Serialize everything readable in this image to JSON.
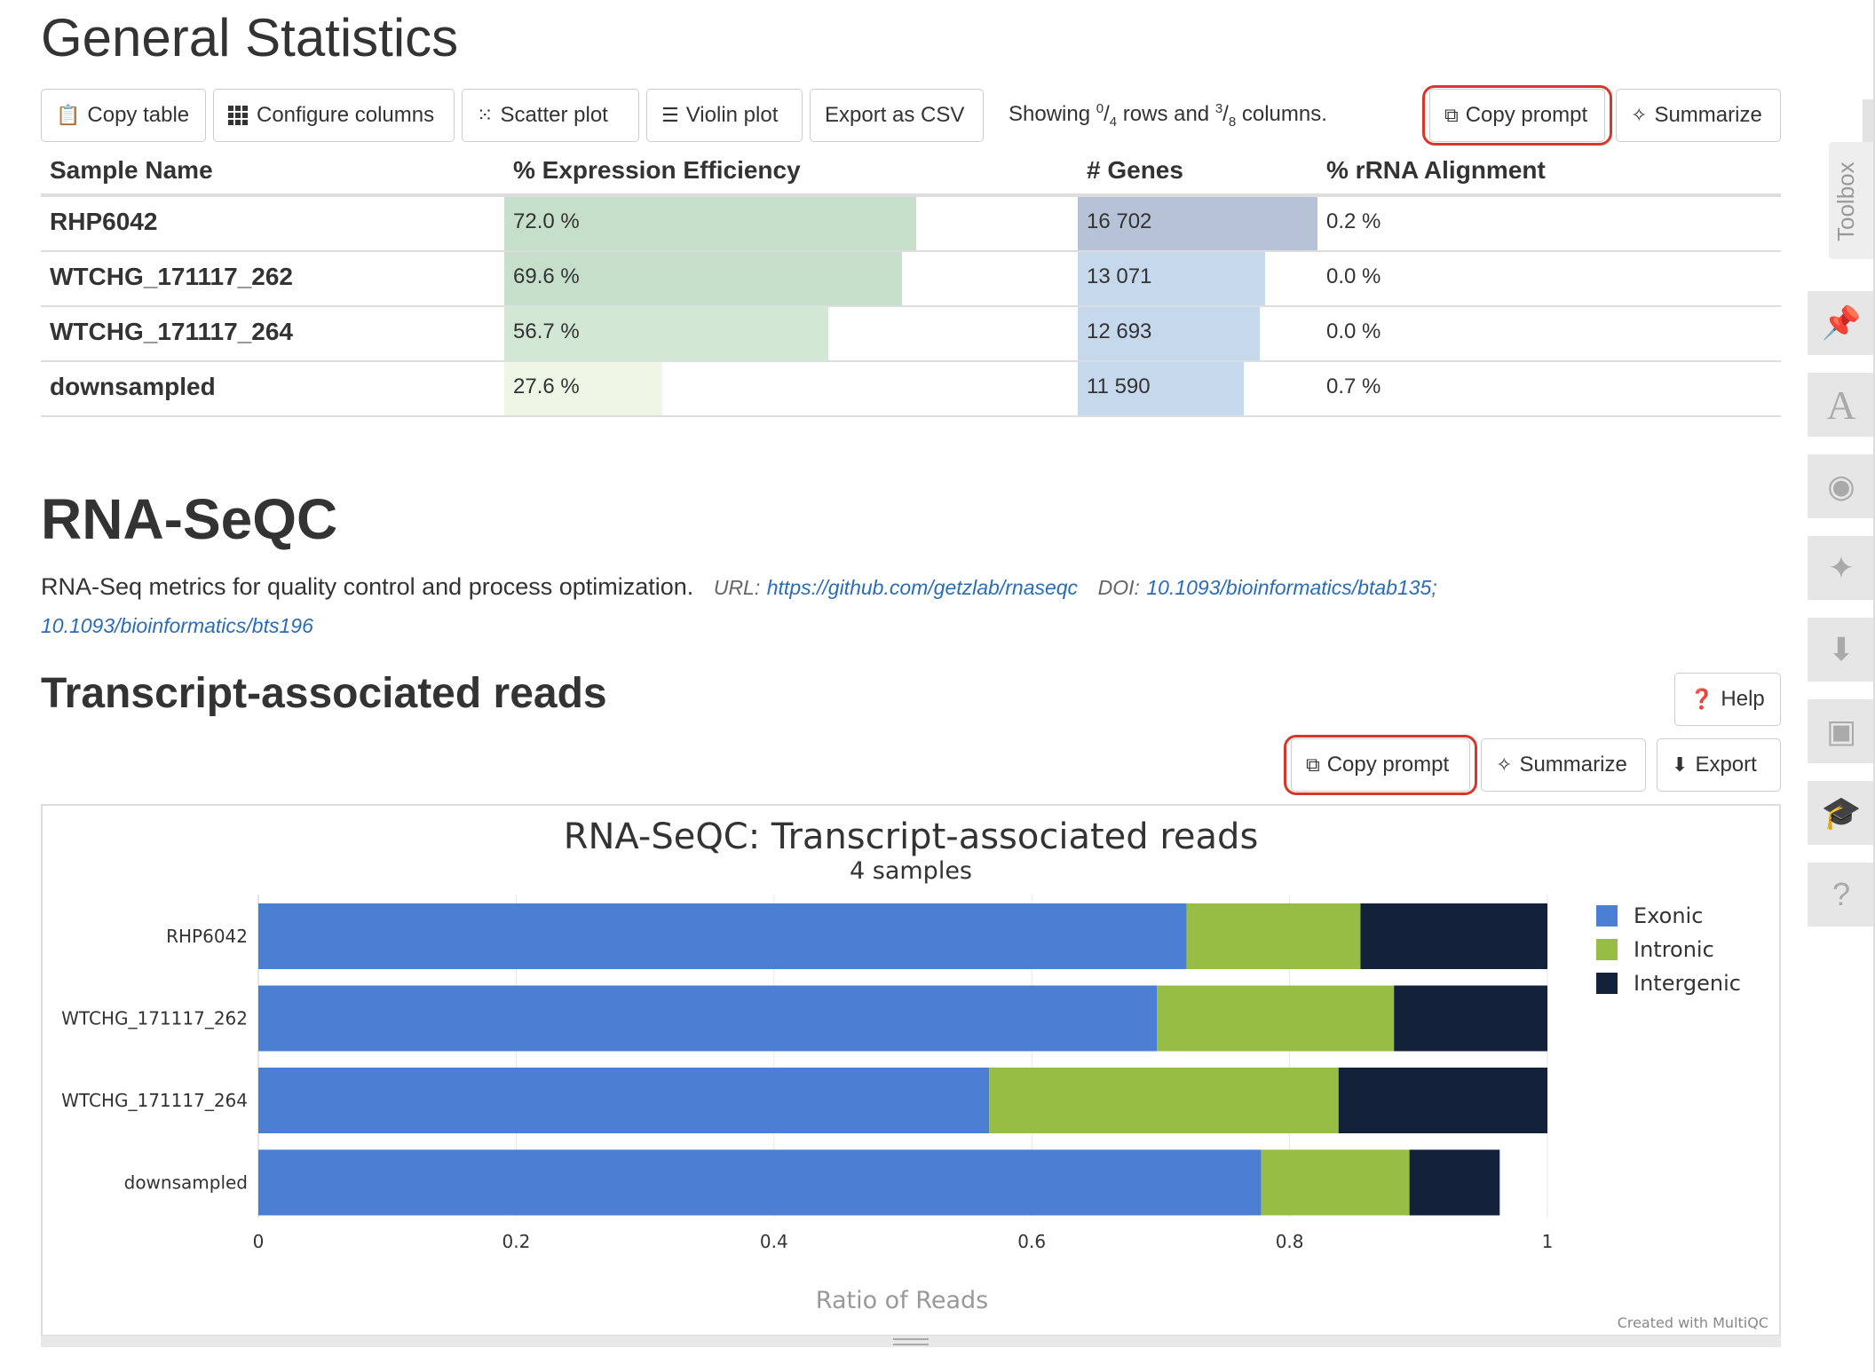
{
  "general_stats": {
    "title": "General Statistics",
    "toolbar": {
      "copy_table": "Copy table",
      "configure_columns": "Configure columns",
      "scatter_plot": "Scatter plot",
      "violin_plot": "Violin plot",
      "export_csv": "Export as CSV",
      "showing_prefix": "Showing",
      "rows_num": "0",
      "rows_den": "4",
      "rows_mid": "rows and",
      "cols_num": "3",
      "cols_den": "8",
      "cols_suffix": "columns.",
      "copy_prompt": "Copy prompt",
      "summarize": "Summarize"
    },
    "columns": [
      "Sample Name",
      "% Expression Efficiency",
      "# Genes",
      "% rRNA Alignment"
    ],
    "rows": [
      {
        "name": "RHP6042",
        "efficiency": "72.0 %",
        "efficiency_value": 72.0,
        "genes": "16 702",
        "genes_value": 16702,
        "rrna": "0.2 %"
      },
      {
        "name": "WTCHG_171117_262",
        "efficiency": "69.6 %",
        "efficiency_value": 69.6,
        "genes": "13 071",
        "genes_value": 13071,
        "rrna": "0.0 %"
      },
      {
        "name": "WTCHG_171117_264",
        "efficiency": "56.7 %",
        "efficiency_value": 56.7,
        "genes": "12 693",
        "genes_value": 12693,
        "rrna": "0.0 %"
      },
      {
        "name": "downsampled",
        "efficiency": "27.6 %",
        "efficiency_value": 27.6,
        "genes": "11 590",
        "genes_value": 11590,
        "rrna": "0.7 %"
      }
    ],
    "colors": {
      "efficiency_bars": [
        "#c6dfca",
        "#c6dfca",
        "#d2e8d4",
        "#eef7e6"
      ],
      "genes_bars": [
        "#b6c3d6",
        "#c6d8ec",
        "#c6d8ec",
        "#c6d8ec"
      ]
    }
  },
  "rnaseqc": {
    "title": "RNA-SeQC",
    "description": "RNA-Seq metrics for quality control and process optimization.",
    "url_label": "URL:",
    "url": "https://github.com/getzlab/rnaseqc",
    "doi_label": "DOI:",
    "doi1": "10.1093/bioinformatics/btab135;",
    "doi2": "10.1093/bioinformatics/bts196"
  },
  "transcript_section": {
    "title": "Transcript-associated reads",
    "help": "Help",
    "copy_prompt": "Copy prompt",
    "summarize": "Summarize",
    "export": "Export",
    "credit": "Created with MultiQC"
  },
  "toolbox": {
    "label": "Toolbox",
    "icons": [
      "pin-icon",
      "font-icon",
      "eye-slash-icon",
      "sparkle-icon",
      "download-icon",
      "save-icon",
      "graduation-cap-icon",
      "question-icon"
    ]
  },
  "chart_data": {
    "type": "bar",
    "orientation": "horizontal",
    "stacked": true,
    "title": "RNA-SeQC: Transcript-associated reads",
    "subtitle": "4 samples",
    "xlabel": "Ratio of Reads",
    "xlim": [
      0,
      1
    ],
    "xticks": [
      "0",
      "0.2",
      "0.4",
      "0.6",
      "0.8",
      "1"
    ],
    "categories": [
      "RHP6042",
      "WTCHG_171117_262",
      "WTCHG_171117_264",
      "downsampled"
    ],
    "series": [
      {
        "name": "Exonic",
        "color": "#4a7fd4",
        "values": [
          0.72,
          0.697,
          0.567,
          0.778
        ]
      },
      {
        "name": "Intronic",
        "color": "#98bd44",
        "values": [
          0.135,
          0.184,
          0.271,
          0.115
        ]
      },
      {
        "name": "Intergenic",
        "color": "#14213a",
        "values": [
          0.145,
          0.119,
          0.162,
          0.07
        ]
      }
    ],
    "legend_position": "right",
    "grid": true
  }
}
